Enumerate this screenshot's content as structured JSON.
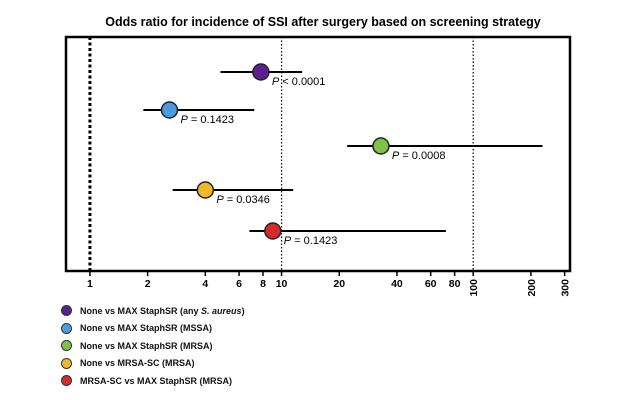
{
  "chart_data": {
    "type": "forest",
    "title": "Odds ratio for incidence of SSI after surgery based on screening strategy",
    "xscale": "log",
    "xlim": [
      0.75,
      320
    ],
    "xticks": [
      1,
      2,
      4,
      6,
      8,
      10,
      20,
      40,
      60,
      80,
      100,
      200,
      300
    ],
    "reference_lines": [
      {
        "x": 1,
        "style": "thick-dotted"
      },
      {
        "x": 10,
        "style": "dotted"
      },
      {
        "x": 100,
        "style": "dotted"
      }
    ],
    "series": [
      {
        "name": "None vs MAX StaphSR (any S. aureus)",
        "legend_main": "None vs MAX StaphSR (any ",
        "legend_em": "S. aureus",
        "legend_tail": ")",
        "or": 7.8,
        "ci_low": 4.8,
        "ci_high": 12.8,
        "p_label": "P",
        "p_value": " < 0.0001",
        "color": "#5c1f8f"
      },
      {
        "name": "None vs MAX StaphSR (MSSA)",
        "legend_main": "None vs MAX StaphSR (MSSA)",
        "legend_em": "",
        "legend_tail": "",
        "or": 2.6,
        "ci_low": 1.9,
        "ci_high": 7.2,
        "p_label": "P",
        "p_value": " = 0.1423",
        "color": "#4b9be0"
      },
      {
        "name": "None vs MAX StaphSR (MRSA)",
        "legend_main": "None vs MAX StaphSR (MRSA)",
        "legend_em": "",
        "legend_tail": "",
        "or": 33,
        "ci_low": 22,
        "ci_high": 230,
        "p_label": "P",
        "p_value": " = 0.0008",
        "color": "#7ec24a"
      },
      {
        "name": "None vs MRSA-SC (MRSA)",
        "legend_main": "None vs MRSA-SC (MRSA)",
        "legend_em": "",
        "legend_tail": "",
        "or": 4.0,
        "ci_low": 2.7,
        "ci_high": 11.5,
        "p_label": "P",
        "p_value": " = 0.0346",
        "color": "#f0b82a"
      },
      {
        "name": "MRSA-SC vs MAX StaphSR (MRSA)",
        "legend_main": "MRSA-SC vs MAX StaphSR (MRSA)",
        "legend_em": "",
        "legend_tail": "",
        "or": 9.0,
        "ci_low": 6.8,
        "ci_high": 72,
        "p_label": "P",
        "p_value": " = 0.1423",
        "color": "#d42a2a"
      }
    ]
  }
}
